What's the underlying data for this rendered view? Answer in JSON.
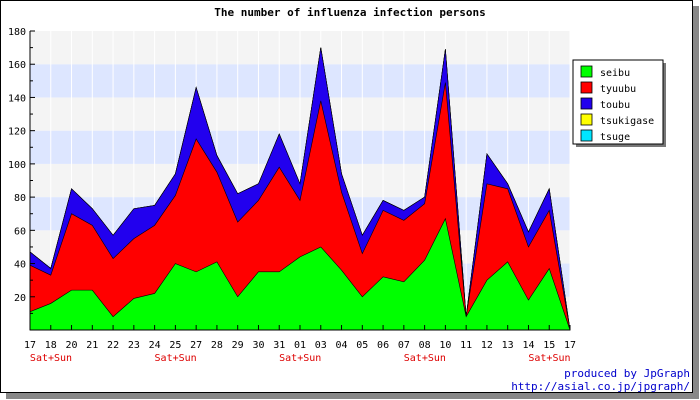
{
  "chart_data": {
    "type": "area",
    "stacked": true,
    "title": "The number of influenza infection persons",
    "categories": [
      "17",
      "18",
      "20",
      "21",
      "22",
      "23",
      "24",
      "25",
      "27",
      "28",
      "29",
      "30",
      "31",
      "01",
      "03",
      "04",
      "05",
      "06",
      "07",
      "08",
      "10",
      "11",
      "12",
      "13",
      "14",
      "15",
      "17"
    ],
    "weekend_marks": [
      {
        "index": 0,
        "label": "Sat+Sun"
      },
      {
        "index": 6,
        "label": "Sat+Sun"
      },
      {
        "index": 12,
        "label": "Sat+Sun"
      },
      {
        "index": 18,
        "label": "Sat+Sun"
      },
      {
        "index": 24,
        "label": "Sat+Sun"
      }
    ],
    "ylim": [
      0,
      180
    ],
    "yticks": [
      20,
      40,
      60,
      80,
      100,
      120,
      140,
      160,
      180
    ],
    "series": [
      {
        "name": "seibu",
        "color": "#00ff00",
        "values": [
          11,
          16,
          24,
          24,
          8,
          19,
          22,
          40,
          35,
          41,
          20,
          35,
          35,
          44,
          50,
          36,
          20,
          32,
          29,
          42,
          67,
          8,
          30,
          41,
          18,
          37,
          0
        ]
      },
      {
        "name": "tyuubu",
        "color": "#ff0000",
        "values": [
          28,
          17,
          46,
          39,
          35,
          36,
          41,
          41,
          80,
          54,
          45,
          43,
          63,
          34,
          88,
          47,
          26,
          40,
          37,
          34,
          82,
          0,
          58,
          44,
          32,
          35,
          0
        ]
      },
      {
        "name": "toubu",
        "color": "#2200ee",
        "values": [
          8,
          4,
          15,
          10,
          14,
          18,
          12,
          13,
          31,
          10,
          17,
          10,
          20,
          10,
          32,
          11,
          11,
          6,
          6,
          4,
          20,
          0,
          18,
          3,
          9,
          13,
          0
        ]
      },
      {
        "name": "tsukigase",
        "color": "#ffff00",
        "values": [
          0,
          0,
          0,
          0,
          0,
          0,
          0,
          0,
          0,
          0,
          0,
          0,
          0,
          0,
          0,
          0,
          0,
          0,
          0,
          0,
          0,
          0,
          0,
          0,
          0,
          0,
          0
        ]
      },
      {
        "name": "tsuge",
        "color": "#00e5ff",
        "values": [
          0,
          0,
          0,
          0,
          0,
          0,
          0,
          0,
          0,
          0,
          0,
          0,
          0,
          0,
          0,
          0,
          0,
          0,
          0,
          0,
          0,
          0,
          0,
          0,
          0,
          0,
          0
        ]
      }
    ],
    "grid": true,
    "legend_position": "top-right"
  },
  "credits": {
    "line1": "produced by JpGraph",
    "line2": "http://asial.co.jp/jpgraph/"
  }
}
